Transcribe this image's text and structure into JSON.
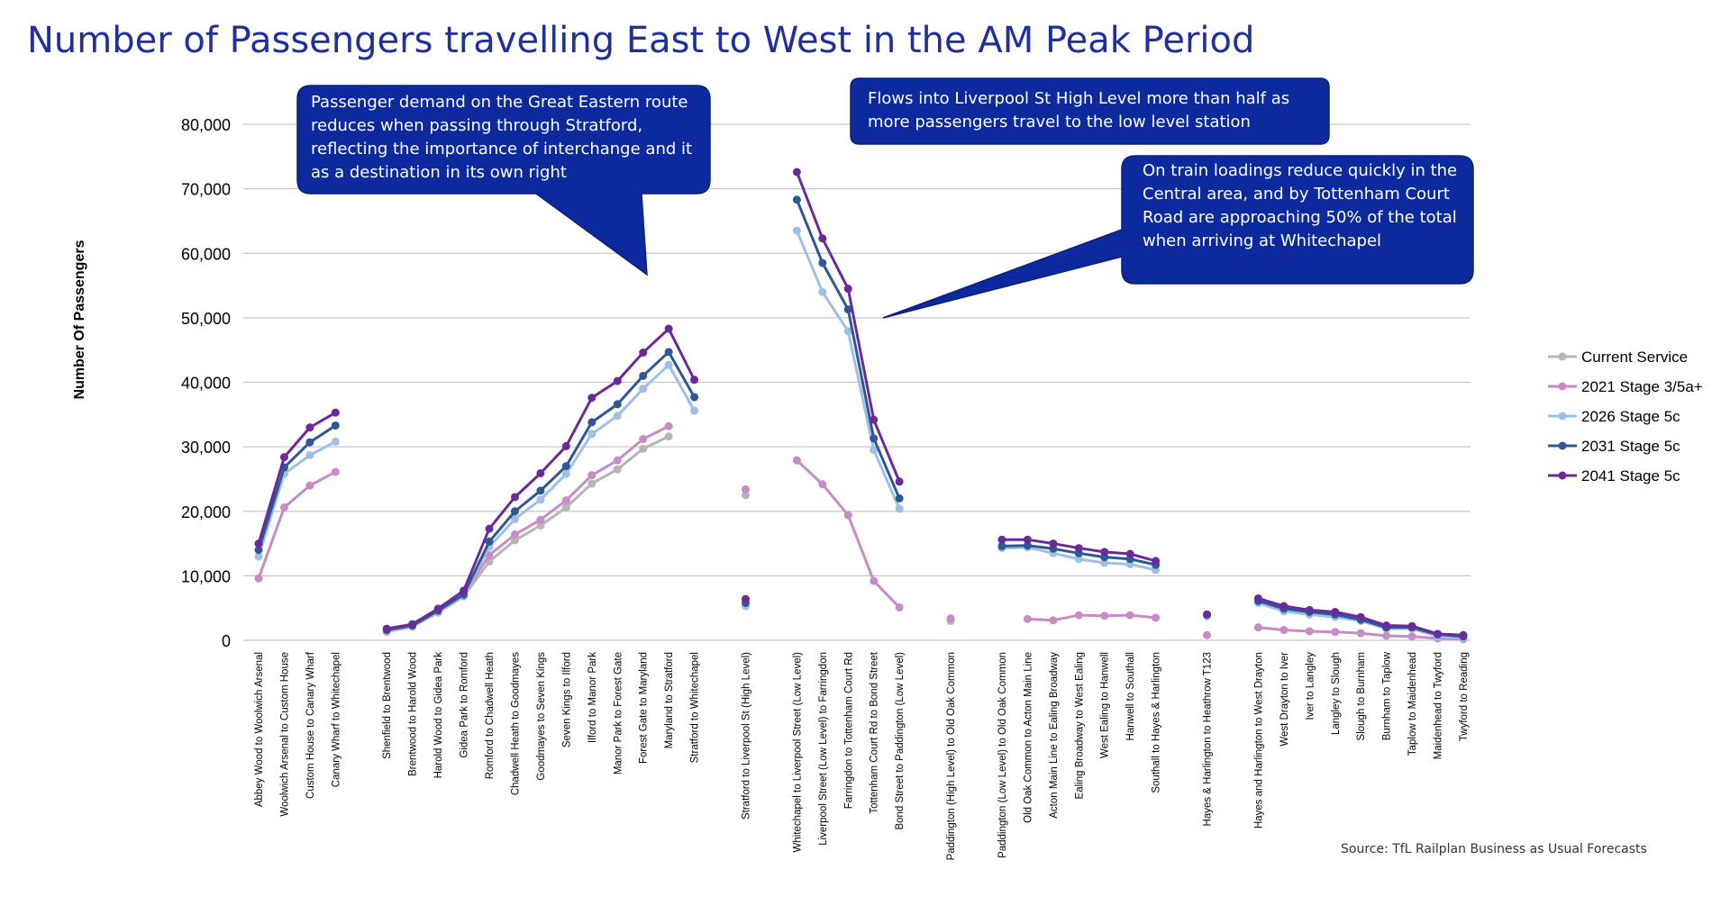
{
  "title": "Number of Passengers travelling East to West in the AM Peak Period",
  "source": "Source: TfL Railplan Business as Usual Forecasts",
  "callouts": [
    {
      "text": "Passenger demand on the Great Eastern route reduces when passing through Stratford, reflecting the importance of interchange and it as a destination in its own right"
    },
    {
      "text": "Flows into Liverpool St High Level more than half as more passengers travel to the low level station"
    },
    {
      "text": "On train loadings reduce quickly in the Central area, and by Tottenham Court Road are approaching 50% of the total when arriving at Whitechapel"
    }
  ],
  "colors": {
    "title": "#1f2f9e",
    "callout": "#0c2a9e",
    "grid": "#c8c8c8"
  },
  "chart_data": {
    "type": "line",
    "title": "Number of Passengers travelling East to West in the AM Peak Period",
    "xlabel": "",
    "ylabel": "Number Of Passengers",
    "ylim": [
      0,
      80000
    ],
    "yticks": [
      0,
      10000,
      20000,
      30000,
      40000,
      50000,
      60000,
      70000,
      80000
    ],
    "ytick_labels": [
      "0",
      "10,000",
      "20,000",
      "30,000",
      "40,000",
      "50,000",
      "60,000",
      "70,000",
      "80,000"
    ],
    "grid": true,
    "legend_position": "right",
    "categories": [
      "Abbey Wood to Woolwich Arsenal",
      "Woolwich Arsenal to Custom House",
      "Custom House to Canary Wharf",
      "Canary Wharf to Whitechapel",
      "",
      "Shenfield to Brentwood",
      "Brentwood to Harold Wood",
      "Harold Wood to Gidea Park",
      "Gidea Park to Romford",
      "Romford to Chadwell Heath",
      "Chadwell Heath to Goodmayes",
      "Goodmayes to Seven Kings",
      "Seven Kings to Ilford",
      "Ilford to Manor Park",
      "Manor Park to Forest Gate",
      "Forest Gate to Maryland",
      "Maryland to Stratford",
      "Stratford to Whitechapel",
      "",
      "Stratford to Liverpool St (High Level)",
      "",
      "Whitechapel to Liverpool Street (Low Level)",
      "Liverpool Street (Low Level) to Farringdon",
      "Farringdon to Tottenham Court Rd",
      "Tottenham Court Rd to Bond Street",
      "Bond Street to Paddington (Low Level)",
      "",
      "Paddington (High Level) to Old Oak Common",
      "",
      "Paddington (Low Level) to Old Oak Common",
      "Old Oak Common to Acton Main Line",
      "Acton Main Line to Ealing Broadway",
      "Ealing Broadway to West Ealing",
      "West Ealing to Hanwell",
      "Hanwell to Southall",
      "Southall to Hayes & Harlington",
      "",
      "Hayes & Harlington to Heathrow T123",
      "",
      "Hayes and Harlington to West Drayton",
      "West Drayton to Iver",
      "Iver to Langley",
      "Langley to Slough",
      "Slough to Burnham",
      "Burnham to Taplow",
      "Taplow to Maidenhead",
      "Maidenhead to Twyford",
      "Twyford to Reading"
    ],
    "series": [
      {
        "name": "Current Service",
        "color": "#b5b5b5",
        "values": [
          null,
          null,
          null,
          null,
          null,
          1300,
          2100,
          4300,
          6800,
          12200,
          15500,
          17800,
          20600,
          24300,
          26500,
          29700,
          31600,
          null,
          null,
          22500,
          null,
          null,
          null,
          null,
          null,
          null,
          null,
          3000,
          null,
          null,
          null,
          null,
          null,
          null,
          null,
          null,
          null,
          null,
          null,
          null,
          null,
          null,
          null,
          null,
          null,
          null,
          null,
          null
        ]
      },
      {
        "name": "2021 Stage 3/5a+",
        "color": "#c98bc6",
        "values": [
          9600,
          20600,
          24000,
          26100,
          null,
          1500,
          2500,
          4700,
          7200,
          13200,
          16400,
          18700,
          21700,
          25600,
          27900,
          31200,
          33200,
          null,
          null,
          23400,
          null,
          27900,
          24200,
          19400,
          9200,
          5100,
          null,
          3400,
          null,
          null,
          3300,
          3100,
          3900,
          3800,
          3900,
          3500,
          null,
          800,
          null,
          2000,
          1600,
          1400,
          1300,
          1100,
          700,
          600,
          300,
          200
        ]
      },
      {
        "name": "2026 Stage 5c",
        "color": "#9ebfe6",
        "values": [
          13000,
          25800,
          28700,
          30800,
          null,
          1500,
          2300,
          4500,
          7000,
          14500,
          18800,
          21800,
          25800,
          32000,
          34800,
          39000,
          42700,
          35600,
          null,
          5300,
          null,
          63500,
          54000,
          47900,
          29500,
          20400,
          null,
          null,
          null,
          14300,
          14400,
          13500,
          12600,
          12000,
          11800,
          10900,
          null,
          3700,
          null,
          5800,
          4500,
          4000,
          3600,
          3000,
          1800,
          1800,
          600,
          400
        ]
      },
      {
        "name": "2031 Stage 5c",
        "color": "#2e5796",
        "values": [
          14000,
          26800,
          30700,
          33300,
          null,
          1600,
          2300,
          4600,
          7100,
          15300,
          20000,
          23200,
          27000,
          33800,
          36600,
          41000,
          44700,
          37700,
          null,
          5800,
          null,
          68300,
          58500,
          51300,
          31300,
          22000,
          null,
          null,
          null,
          14600,
          14700,
          14200,
          13500,
          12900,
          12600,
          11700,
          null,
          4000,
          null,
          6100,
          4900,
          4400,
          4000,
          3200,
          2000,
          2000,
          900,
          600
        ]
      },
      {
        "name": "2041 Stage 5c",
        "color": "#6a2a9c",
        "values": [
          15000,
          28400,
          33000,
          35300,
          null,
          1800,
          2500,
          4900,
          7700,
          17300,
          22200,
          25900,
          30100,
          37600,
          40200,
          44600,
          48300,
          40400,
          null,
          6400,
          null,
          72600,
          62300,
          54500,
          34200,
          24600,
          null,
          null,
          null,
          15600,
          15600,
          15000,
          14300,
          13700,
          13400,
          12300,
          null,
          4000,
          null,
          6500,
          5300,
          4700,
          4400,
          3600,
          2300,
          2200,
          1000,
          800
        ]
      }
    ]
  }
}
